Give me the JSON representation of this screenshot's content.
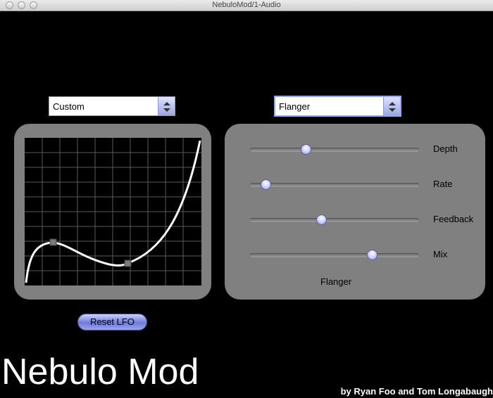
{
  "window": {
    "title": "NebuloMod/1-Audio"
  },
  "lfo_select": {
    "value": "Custom"
  },
  "effect_select": {
    "value": "Flanger"
  },
  "sliders": [
    {
      "label": "Depth",
      "value": 0.33
    },
    {
      "label": "Rate",
      "value": 0.09
    },
    {
      "label": "Feedback",
      "value": 0.42
    },
    {
      "label": "Mix",
      "value": 0.72
    }
  ],
  "effect_panel_label": "Flanger",
  "reset_button": {
    "label": "Reset LFO"
  },
  "brand": "Nebulo Mod",
  "credit": "by Ryan Foo and Tom Longabaugh",
  "colors": {
    "panel": "#808080",
    "accent": "#8a90e0",
    "background": "#000000"
  }
}
